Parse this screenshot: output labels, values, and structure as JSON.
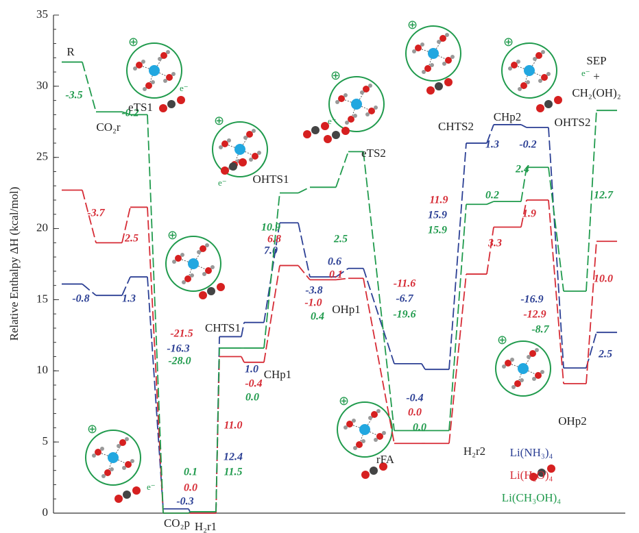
{
  "chart_data": {
    "type": "energy_profile",
    "y_label": "Relative Enthalpy ΔH (kcal/mol)",
    "ylim": [
      0,
      35
    ],
    "yticks": [
      0,
      5,
      10,
      15,
      20,
      25,
      30,
      35
    ],
    "stages": [
      "R",
      "CO₂r",
      "eTS1",
      "CO₂p",
      "H₂r1",
      "CHTS1",
      "CHp1",
      "OHTS1",
      "OHp1",
      "eTS2",
      "rFA",
      "H₂r2",
      "CHTS2",
      "CHp2",
      "OHTS2",
      "OHp2",
      "SEP"
    ],
    "product_annotation": [
      "+",
      "CH₂(OH)₂"
    ],
    "electron_label": "e⁻",
    "series": [
      {
        "name": "Li(NH₃)₄",
        "color": "#2b3f94",
        "levels": [
          16.1,
          15.3,
          16.6,
          0.3,
          0.0,
          12.4,
          13.4,
          20.4,
          16.6,
          17.2,
          10.5,
          10.1,
          26.0,
          27.3,
          27.1,
          10.2,
          12.7
        ],
        "changes": [
          -0.8,
          1.3,
          -16.3,
          -0.3,
          12.4,
          1.0,
          7.0,
          -3.8,
          0.6,
          -6.7,
          -0.4,
          15.9,
          1.3,
          -0.2,
          -16.9,
          2.5
        ],
        "change_labels": [
          "-0.8",
          "1.3",
          "-16.3",
          "-0.3",
          "12.4",
          "1.0",
          "7.0",
          "-3.8",
          "0.6",
          "-6.7",
          "-0.4",
          "15.9",
          "1.3",
          "-0.2",
          "-16.9",
          "2.5"
        ]
      },
      {
        "name": "Li(H₂O)₄",
        "color": "#d62b35",
        "levels": [
          22.7,
          19.0,
          21.5,
          0.0,
          0.0,
          11.0,
          10.6,
          17.4,
          16.4,
          16.5,
          4.9,
          4.9,
          16.8,
          20.1,
          22.0,
          9.1,
          19.1
        ],
        "changes": [
          -3.7,
          2.5,
          -21.5,
          0.0,
          11.0,
          -0.4,
          6.8,
          -1.0,
          0.1,
          -11.6,
          0.0,
          11.9,
          3.3,
          1.9,
          -12.9,
          10.0
        ],
        "change_labels": [
          "-3.7",
          "2.5",
          "-21.5",
          "0.0",
          "11.0",
          "-0.4",
          "6.8",
          "-1.0",
          "0.1",
          "-11.6",
          "0.0",
          "11.9",
          "3.3",
          "1.9",
          "-12.9",
          "10.0"
        ]
      },
      {
        "name": "Li(CH₃OH)₄",
        "color": "#1f9a4c",
        "levels": [
          31.7,
          28.2,
          28.0,
          0.0,
          0.1,
          11.6,
          11.6,
          22.5,
          22.9,
          25.4,
          5.8,
          5.8,
          21.7,
          21.9,
          24.3,
          15.6,
          28.3
        ],
        "changes": [
          -3.5,
          -0.2,
          -28.0,
          0.1,
          11.5,
          0.0,
          10.9,
          0.4,
          2.5,
          -19.6,
          0.0,
          15.9,
          0.2,
          2.4,
          -8.7,
          12.7
        ],
        "change_labels": [
          "-3.5",
          "-0.2",
          "-28.0",
          "0.1",
          "11.5",
          "0.0",
          "10.9",
          "0.4",
          "2.5",
          "-19.6",
          "0.0",
          "15.9",
          "0.2",
          "2.4",
          "-8.7",
          "12.7"
        ]
      }
    ]
  }
}
